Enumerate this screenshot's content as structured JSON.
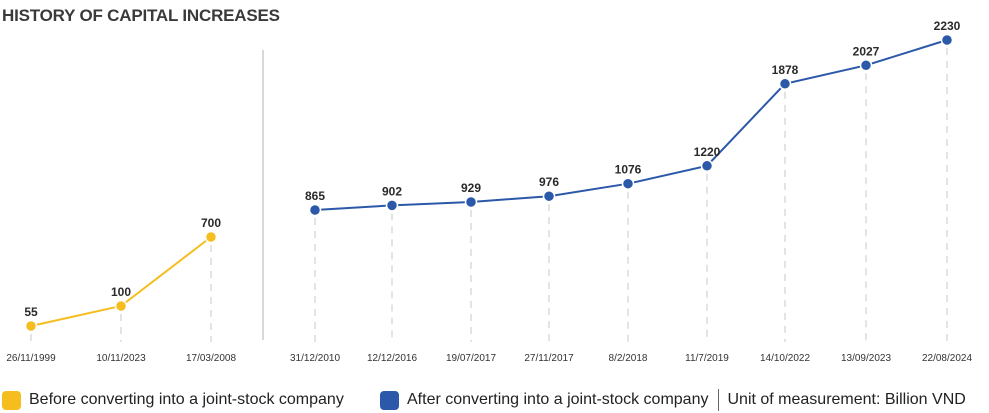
{
  "title": "HISTORY OF CAPITAL INCREASES",
  "colors": {
    "before": "#F5BE1E",
    "after": "#2B58A8",
    "grid": "#c8c8c8",
    "divider": "#b0b0b0"
  },
  "legend": {
    "before": "Before converting into a joint-stock company",
    "after": "After converting into a joint-stock company",
    "unit": "Unit of measurement: Billion VND"
  },
  "chart_data": {
    "type": "line",
    "title": "HISTORY OF CAPITAL INCREASES",
    "xlabel": "",
    "ylabel": "",
    "grid": "vertical dashed lines",
    "legend_position": "bottom",
    "series": [
      {
        "name": "Before converting into a joint-stock company",
        "color": "#F5BE1E",
        "x": [
          "26/11/1999",
          "10/11/2023",
          "17/03/2008"
        ],
        "values": [
          55,
          100,
          700
        ]
      },
      {
        "name": "After converting into a joint-stock company",
        "color": "#2B58A8",
        "x": [
          "31/12/2010",
          "12/12/2016",
          "19/07/2017",
          "27/11/2017",
          "8/2/2018",
          "11/7/2019",
          "14/10/2022",
          "13/09/2023",
          "22/08/2024"
        ],
        "values": [
          865,
          902,
          929,
          976,
          1076,
          1220,
          1878,
          2027,
          2230
        ]
      }
    ]
  }
}
